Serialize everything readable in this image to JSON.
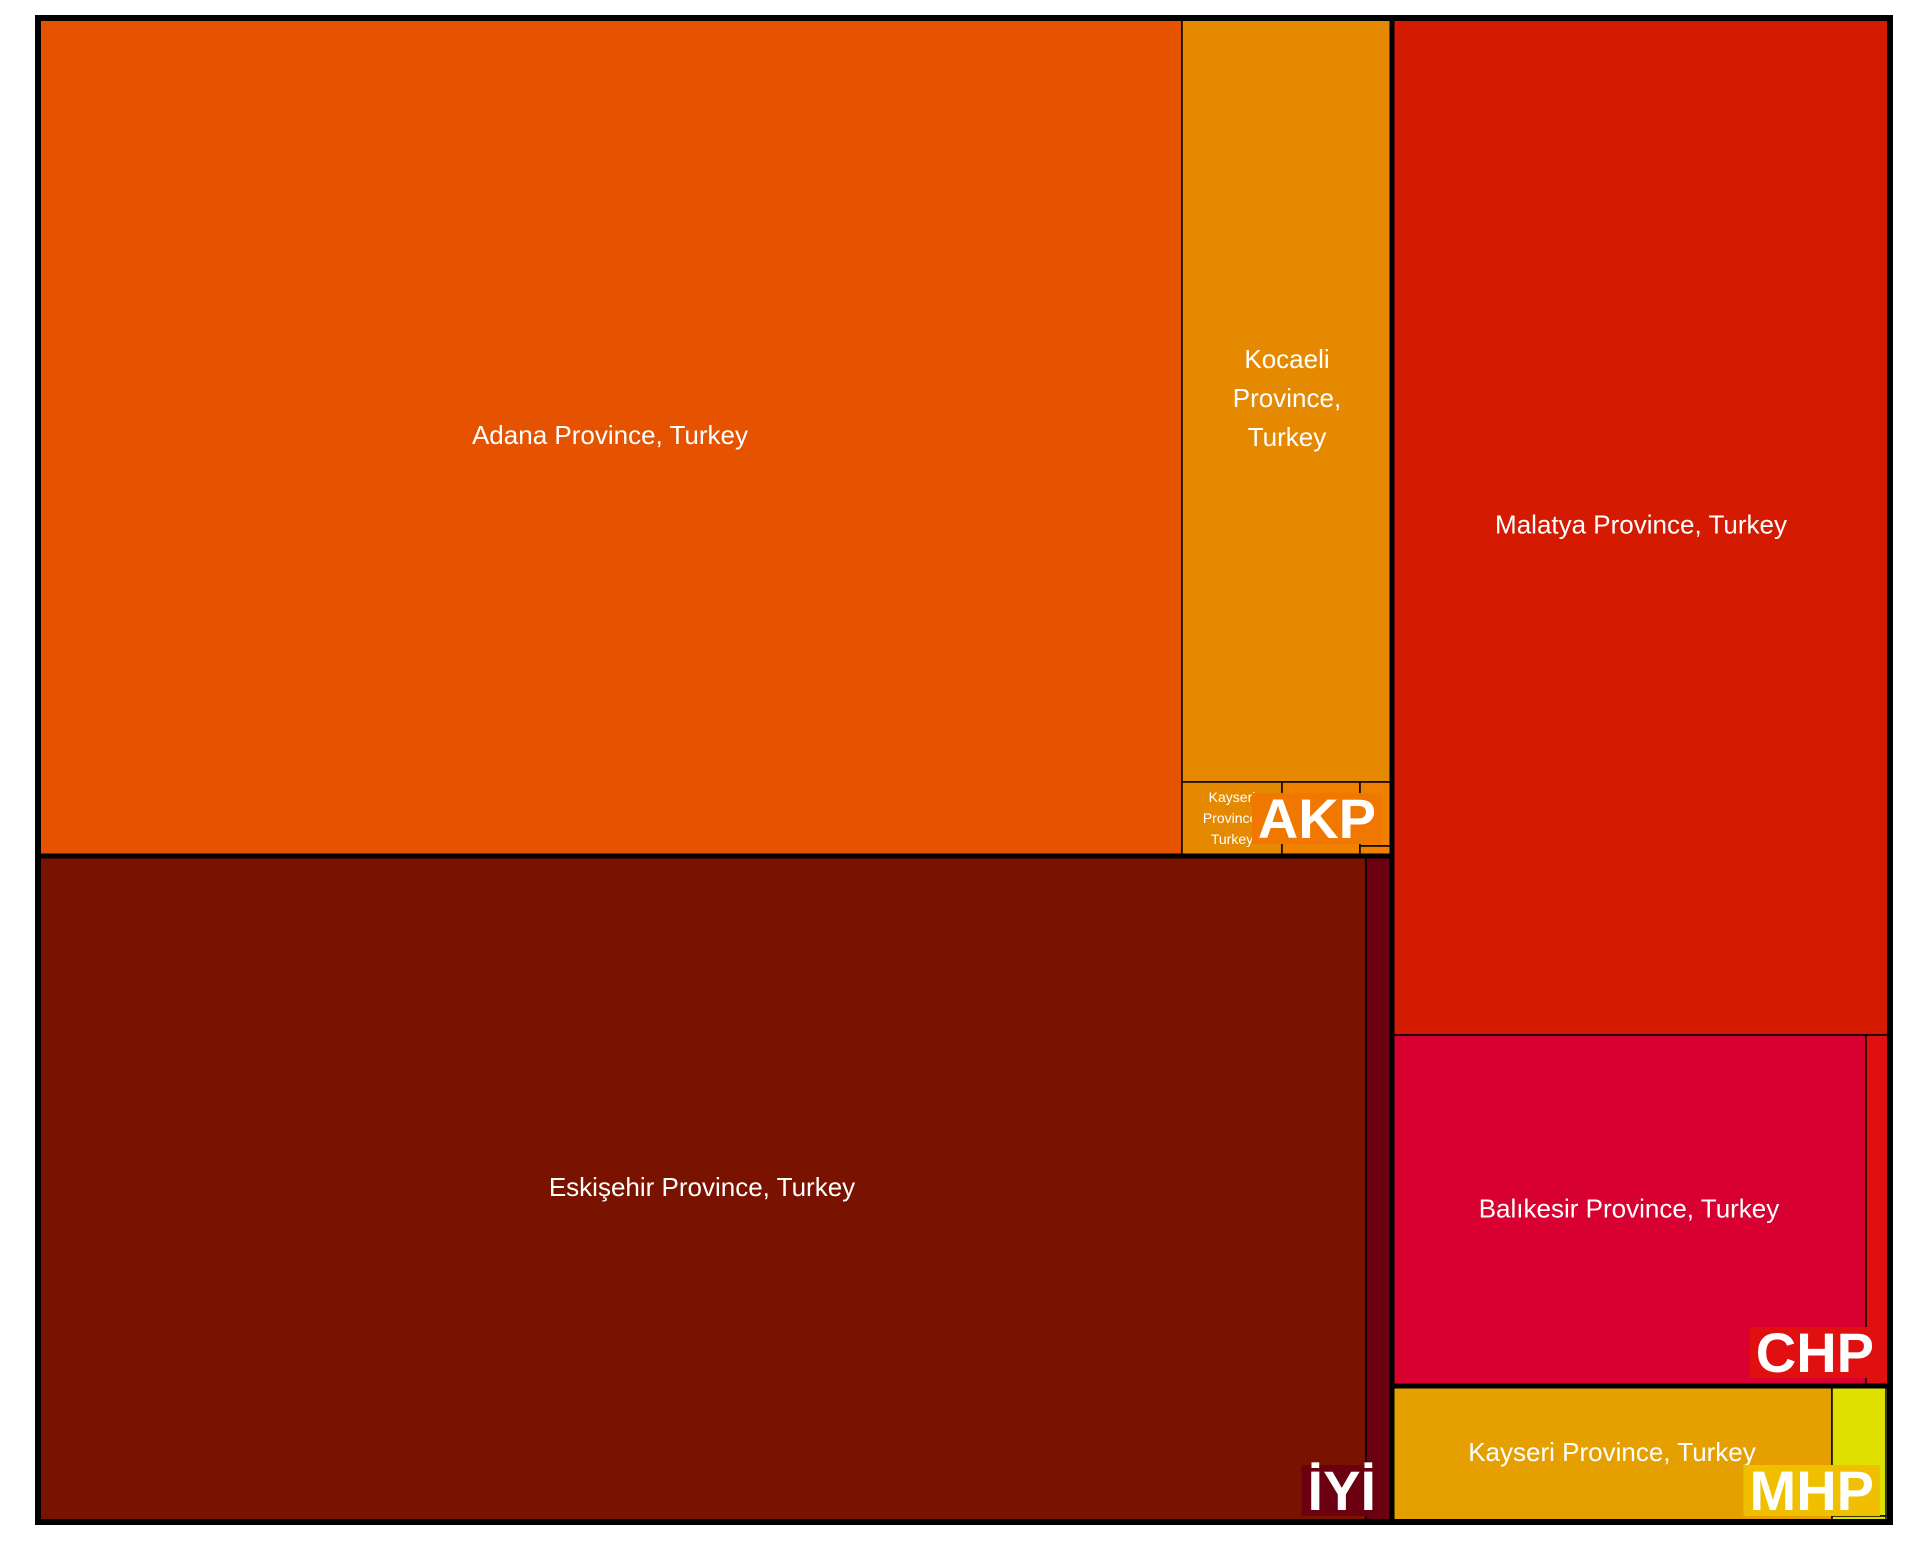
{
  "chart_data": {
    "type": "treemap",
    "title": "",
    "groups": [
      {
        "name": "AKP",
        "color": "#e55300",
        "label_bg": "#f07800",
        "children": [
          {
            "name": "Adana Province, Turkey",
            "color": "#e55300",
            "value": 60.0
          },
          {
            "name": "Kocaeli Province, Turkey",
            "color": "#e58a00",
            "value": 10.0
          },
          {
            "name": "Kayseri Province, Turkey",
            "color": "#e58a00",
            "value": 1.2
          },
          {
            "name": "",
            "color": "#f08000",
            "value": 0.8
          },
          {
            "name": "",
            "color": "#f08000",
            "value": 0.3
          },
          {
            "name": "",
            "color": "#f08000",
            "value": 0.15
          }
        ]
      },
      {
        "name": "İYİ",
        "color": "#7a1200",
        "label_bg": "#6a0010",
        "children": [
          {
            "name": "Eskişehir Province, Turkey",
            "color": "#7a1200",
            "value": 59.0
          },
          {
            "name": "",
            "color": "#6a0010",
            "value": 1.0
          }
        ]
      },
      {
        "name": "CHP",
        "color": "#d41a00",
        "label_bg": "#e01010",
        "children": [
          {
            "name": "Malatya Province, Turkey",
            "color": "#d41a00",
            "value": 33.0
          },
          {
            "name": "Balıkesir Province, Turkey",
            "color": "#d80030",
            "value": 11.0
          },
          {
            "name": "",
            "color": "#e01010",
            "value": 0.5
          }
        ]
      },
      {
        "name": "MHP",
        "color": "#e5a000",
        "label_bg": "#f0c000",
        "children": [
          {
            "name": "Kayseri Province, Turkey",
            "color": "#e5a000",
            "value": 4.5
          },
          {
            "name": "",
            "color": "#e0e000",
            "value": 0.5
          },
          {
            "name": "",
            "color": "#e0e000",
            "value": 0.05
          }
        ]
      }
    ]
  }
}
